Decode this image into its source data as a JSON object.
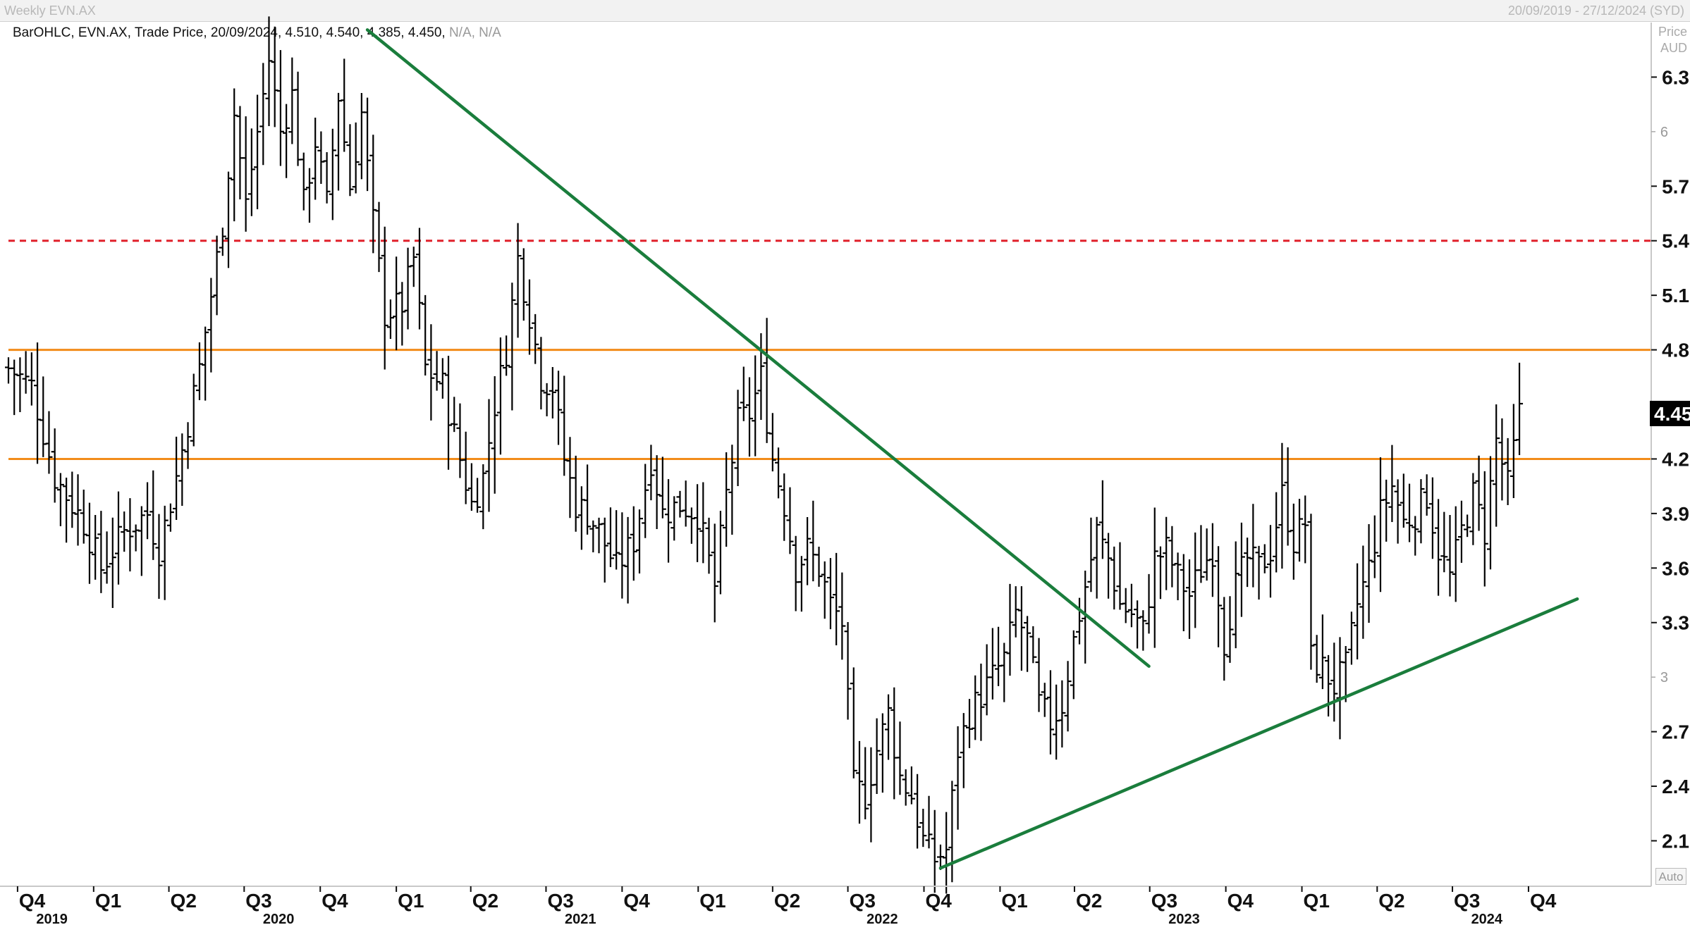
{
  "header": {
    "title": "Weekly EVN.AX",
    "date_range": "20/09/2019 - 27/12/2024 (SYD)"
  },
  "legend": {
    "text": "BarOHLC, EVN.AX, Trade Price, 20/09/2024, 4.510, 4.540, 4.385, 4.450,",
    "na": "N/A, N/A"
  },
  "axis": {
    "price_label": "Price",
    "currency_label": "AUD",
    "auto_label": "Auto"
  },
  "colors": {
    "bars": "#000000",
    "green_trendline": "#1a7d3c",
    "orange_level": "#f28c1a",
    "red_dashed_level": "#e0202a"
  },
  "chart_data": {
    "type": "bar",
    "subtype": "ohlc",
    "instrument": "EVN.AX",
    "ylim": [
      1.85,
      6.6
    ],
    "xlim": [
      "2019-09-20",
      "2024-12-27"
    ],
    "y_ticks_major": [
      "6.3",
      "5.7",
      "5.4",
      "5.1",
      "4.8",
      "4.2",
      "3.9",
      "3.6",
      "3.3",
      "2.7",
      "2.4",
      "2.1"
    ],
    "y_ticks_minor": [
      "6",
      "3"
    ],
    "x_quarters": [
      {
        "label": "Q4",
        "date": "2019-10-01"
      },
      {
        "label": "Q1",
        "date": "2020-01-01"
      },
      {
        "label": "Q2",
        "date": "2020-04-01"
      },
      {
        "label": "Q3",
        "date": "2020-07-01"
      },
      {
        "label": "Q4",
        "date": "2020-10-01"
      },
      {
        "label": "Q1",
        "date": "2021-01-01"
      },
      {
        "label": "Q2",
        "date": "2021-04-01"
      },
      {
        "label": "Q3",
        "date": "2021-07-01"
      },
      {
        "label": "Q4",
        "date": "2021-10-01"
      },
      {
        "label": "Q1",
        "date": "2022-01-01"
      },
      {
        "label": "Q2",
        "date": "2022-04-01"
      },
      {
        "label": "Q3",
        "date": "2022-07-01"
      },
      {
        "label": "Q4",
        "date": "2022-10-01"
      },
      {
        "label": "Q1",
        "date": "2023-01-01"
      },
      {
        "label": "Q2",
        "date": "2023-04-01"
      },
      {
        "label": "Q3",
        "date": "2023-07-01"
      },
      {
        "label": "Q4",
        "date": "2023-10-01"
      },
      {
        "label": "Q1",
        "date": "2024-01-01"
      },
      {
        "label": "Q2",
        "date": "2024-04-01"
      },
      {
        "label": "Q3",
        "date": "2024-07-01"
      },
      {
        "label": "Q4",
        "date": "2024-10-01"
      }
    ],
    "x_years": [
      {
        "label": "2019",
        "date": "2019-11-15"
      },
      {
        "label": "2020",
        "date": "2020-08-15"
      },
      {
        "label": "2021",
        "date": "2021-08-15"
      },
      {
        "label": "2022",
        "date": "2022-08-15"
      },
      {
        "label": "2023",
        "date": "2023-08-15"
      },
      {
        "label": "2024",
        "date": "2024-08-15"
      }
    ],
    "last_price_label": "4.45",
    "last_price": 4.45,
    "horizontal_levels": [
      {
        "value": 5.4,
        "style": "dashed",
        "color": "#e0202a"
      },
      {
        "value": 4.8,
        "style": "solid",
        "color": "#f28c1a"
      },
      {
        "value": 4.2,
        "style": "solid",
        "color": "#f28c1a"
      }
    ],
    "trendlines": [
      {
        "from": [
          "2020-11-27",
          6.56
        ],
        "to": [
          "2023-06-30",
          3.06
        ],
        "color": "#1a7d3c"
      },
      {
        "from": [
          "2022-10-21",
          1.95
        ],
        "to": [
          "2024-11-29",
          3.43
        ],
        "color": "#1a7d3c"
      }
    ],
    "anchors": [
      [
        "2019-09-20",
        4.7
      ],
      [
        "2019-10-18",
        4.6
      ],
      [
        "2019-11-15",
        4.1
      ],
      [
        "2019-12-20",
        3.85
      ],
      [
        "2020-01-10",
        3.6
      ],
      [
        "2020-02-07",
        3.8
      ],
      [
        "2020-03-06",
        3.9
      ],
      [
        "2020-03-20",
        3.7
      ],
      [
        "2020-04-10",
        4.1
      ],
      [
        "2020-04-24",
        4.4
      ],
      [
        "2020-05-08",
        4.7
      ],
      [
        "2020-05-22",
        5.1
      ],
      [
        "2020-06-05",
        5.5
      ],
      [
        "2020-06-19",
        6.1
      ],
      [
        "2020-07-03",
        5.6
      ],
      [
        "2020-07-17",
        6.0
      ],
      [
        "2020-07-31",
        6.4
      ],
      [
        "2020-08-14",
        6.0
      ],
      [
        "2020-08-28",
        6.2
      ],
      [
        "2020-09-11",
        5.6
      ],
      [
        "2020-09-25",
        5.95
      ],
      [
        "2020-10-09",
        5.6
      ],
      [
        "2020-10-23",
        6.2
      ],
      [
        "2020-11-06",
        5.7
      ],
      [
        "2020-11-20",
        6.1
      ],
      [
        "2020-12-04",
        5.5
      ],
      [
        "2020-12-18",
        5.0
      ],
      [
        "2021-01-08",
        5.05
      ],
      [
        "2021-01-22",
        5.3
      ],
      [
        "2021-02-05",
        4.7
      ],
      [
        "2021-02-26",
        4.6
      ],
      [
        "2021-03-19",
        4.2
      ],
      [
        "2021-04-02",
        3.95
      ],
      [
        "2021-04-16",
        4.1
      ],
      [
        "2021-04-30",
        4.5
      ],
      [
        "2021-05-14",
        4.8
      ],
      [
        "2021-05-28",
        5.3
      ],
      [
        "2021-06-11",
        5.0
      ],
      [
        "2021-06-25",
        4.65
      ],
      [
        "2021-07-09",
        4.6
      ],
      [
        "2021-07-23",
        4.2
      ],
      [
        "2021-08-06",
        3.95
      ],
      [
        "2021-08-20",
        3.9
      ],
      [
        "2021-09-03",
        3.8
      ],
      [
        "2021-09-24",
        3.6
      ],
      [
        "2021-10-15",
        3.75
      ],
      [
        "2021-11-05",
        4.2
      ],
      [
        "2021-11-19",
        3.9
      ],
      [
        "2021-12-10",
        3.95
      ],
      [
        "2021-12-31",
        3.9
      ],
      [
        "2022-01-21",
        3.5
      ],
      [
        "2022-02-04",
        4.0
      ],
      [
        "2022-02-18",
        4.4
      ],
      [
        "2022-03-04",
        4.45
      ],
      [
        "2022-03-18",
        4.65
      ],
      [
        "2022-04-01",
        4.2
      ],
      [
        "2022-04-15",
        3.95
      ],
      [
        "2022-04-29",
        3.6
      ],
      [
        "2022-05-13",
        3.7
      ],
      [
        "2022-05-27",
        3.6
      ],
      [
        "2022-06-10",
        3.4
      ],
      [
        "2022-06-24",
        3.3
      ],
      [
        "2022-07-08",
        2.4
      ],
      [
        "2022-07-22",
        2.35
      ],
      [
        "2022-08-05",
        2.6
      ],
      [
        "2022-08-19",
        2.8
      ],
      [
        "2022-09-02",
        2.45
      ],
      [
        "2022-09-16",
        2.35
      ],
      [
        "2022-09-30",
        2.1
      ],
      [
        "2022-10-14",
        2.0
      ],
      [
        "2022-10-28",
        2.05
      ],
      [
        "2022-11-11",
        2.6
      ],
      [
        "2022-11-25",
        2.8
      ],
      [
        "2022-12-09",
        2.9
      ],
      [
        "2022-12-23",
        3.0
      ],
      [
        "2023-01-06",
        3.1
      ],
      [
        "2023-01-20",
        3.35
      ],
      [
        "2023-02-03",
        3.2
      ],
      [
        "2023-02-17",
        2.85
      ],
      [
        "2023-03-03",
        2.75
      ],
      [
        "2023-03-17",
        2.85
      ],
      [
        "2023-03-31",
        3.2
      ],
      [
        "2023-04-14",
        3.5
      ],
      [
        "2023-04-28",
        3.8
      ],
      [
        "2023-05-12",
        3.65
      ],
      [
        "2023-05-26",
        3.4
      ],
      [
        "2023-06-09",
        3.35
      ],
      [
        "2023-06-23",
        3.25
      ],
      [
        "2023-07-07",
        3.65
      ],
      [
        "2023-07-21",
        3.7
      ],
      [
        "2023-08-04",
        3.55
      ],
      [
        "2023-08-18",
        3.45
      ],
      [
        "2023-09-01",
        3.6
      ],
      [
        "2023-09-15",
        3.7
      ],
      [
        "2023-09-29",
        3.2
      ],
      [
        "2023-10-13",
        3.5
      ],
      [
        "2023-10-27",
        3.65
      ],
      [
        "2023-11-10",
        3.6
      ],
      [
        "2023-11-24",
        3.7
      ],
      [
        "2023-12-08",
        4.0
      ],
      [
        "2023-12-22",
        3.75
      ],
      [
        "2024-01-05",
        3.85
      ],
      [
        "2024-01-12",
        3.1
      ],
      [
        "2024-01-26",
        3.05
      ],
      [
        "2024-02-09",
        2.95
      ],
      [
        "2024-02-23",
        3.05
      ],
      [
        "2024-03-08",
        3.4
      ],
      [
        "2024-03-22",
        3.6
      ],
      [
        "2024-04-05",
        3.9
      ],
      [
        "2024-04-19",
        4.05
      ],
      [
        "2024-05-03",
        3.85
      ],
      [
        "2024-05-17",
        3.9
      ],
      [
        "2024-05-31",
        4.0
      ],
      [
        "2024-06-14",
        3.7
      ],
      [
        "2024-06-28",
        3.55
      ],
      [
        "2024-07-12",
        3.8
      ],
      [
        "2024-07-26",
        4.0
      ],
      [
        "2024-08-09",
        3.8
      ],
      [
        "2024-08-23",
        4.3
      ],
      [
        "2024-09-06",
        4.05
      ],
      [
        "2024-09-20",
        4.45
      ]
    ]
  }
}
